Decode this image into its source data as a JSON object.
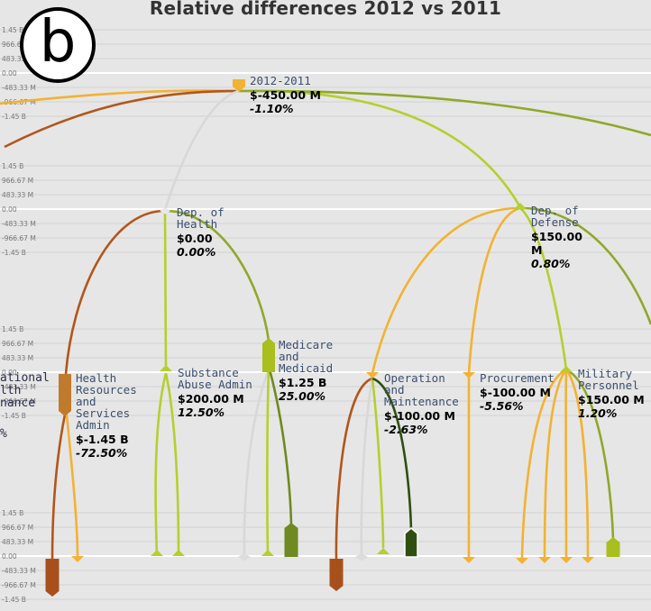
{
  "title": "Relative differences 2012 vs 2011",
  "badge": "b",
  "axis_ticks": [
    "1.45 B",
    "966.67 M",
    "483.33 M",
    "0.00",
    "-483.33 M",
    "-966.67 M",
    "-1.45 B"
  ],
  "clipped_left_text": [
    "ational",
    "lth",
    "nance",
    "%"
  ],
  "colors": {
    "bg": "#e6e6e6",
    "link_orange": "#f2b233",
    "link_lightgreen": "#b5cf2e",
    "link_olive": "#8fa82a",
    "link_brown": "#b2561a",
    "link_darkgreen": "#2f4f10",
    "link_grey": "#d8d8d8"
  },
  "nodes": {
    "root": {
      "name": "2012-2011",
      "value": "$-450.00 M",
      "pct": "-1.10%"
    },
    "health": {
      "name": "Dep. of Health",
      "value": "$0.00",
      "pct": "0.00%"
    },
    "defense": {
      "name": "Dep. of Defense",
      "value": "$150.00 M",
      "pct": "0.80%"
    },
    "hrsa": {
      "name": "Health Resources and Services Admin",
      "value": "$-1.45 B",
      "pct": "-72.50%"
    },
    "samhsa": {
      "name": "Substance Abuse Admin",
      "value": "$200.00 M",
      "pct": "12.50%"
    },
    "medicare": {
      "name": "Medicare and Medicaid",
      "value": "$1.25 B",
      "pct": "25.00%"
    },
    "om": {
      "name": "Operation and Maintenance",
      "value": "$-100.00 M",
      "pct": "-2.63%"
    },
    "procurement": {
      "name": "Procurement",
      "value": "$-100.00 M",
      "pct": "-5.56%"
    },
    "military": {
      "name": "Military Personnel",
      "value": "$150.00 M",
      "pct": "1.20%"
    }
  }
}
